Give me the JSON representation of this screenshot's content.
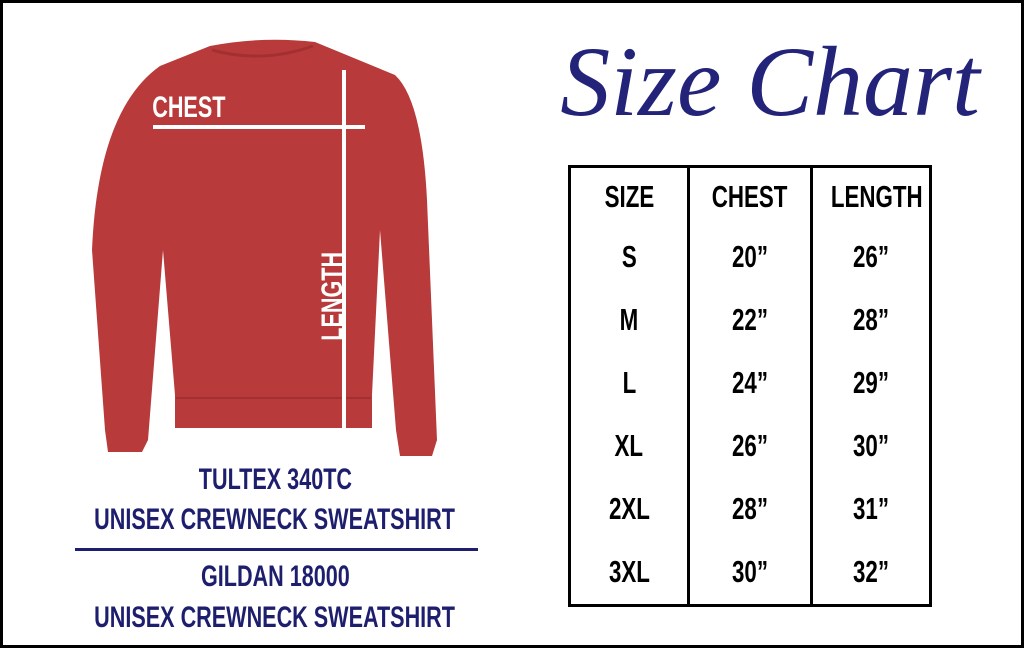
{
  "title": "Size Chart",
  "diagram": {
    "chest_label": "CHEST",
    "length_label": "LENGTH",
    "garment_color": "#b93a3a"
  },
  "products": [
    {
      "brand": "TULTEX 340TC",
      "name": "UNISEX CREWNECK SWEATSHIRT"
    },
    {
      "brand": "GILDAN 18000",
      "name": "UNISEX CREWNECK SWEATSHIRT"
    }
  ],
  "table": {
    "headers": [
      "SIZE",
      "CHEST",
      "LENGTH"
    ],
    "rows": [
      [
        "S",
        "20”",
        "26”"
      ],
      [
        "M",
        "22”",
        "28”"
      ],
      [
        "L",
        "24”",
        "29”"
      ],
      [
        "XL",
        "26”",
        "30”"
      ],
      [
        "2XL",
        "28”",
        "31”"
      ],
      [
        "3XL",
        "30”",
        "32”"
      ]
    ]
  },
  "colors": {
    "navy": "#1e1e6e",
    "border": "#000000"
  }
}
